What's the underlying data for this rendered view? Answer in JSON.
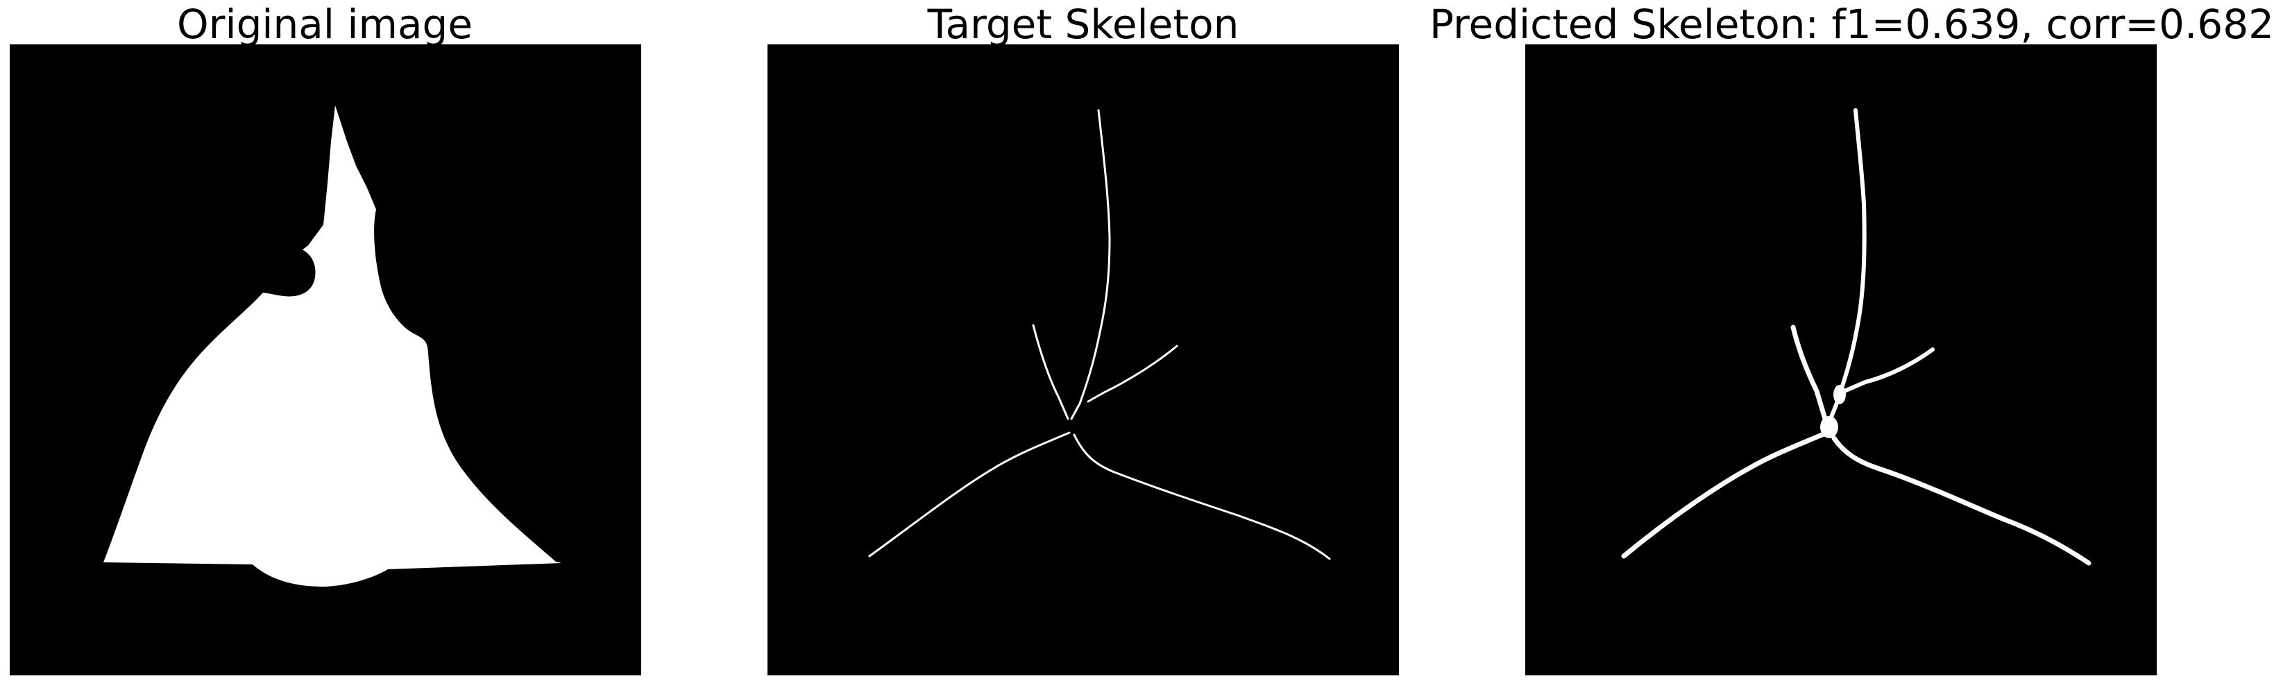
{
  "panels": [
    {
      "title": "Original image"
    },
    {
      "title": "Target Skeleton"
    },
    {
      "title": "Predicted Skeleton: f1=0.639, corr=0.682"
    }
  ],
  "colors": {
    "background": "#000000",
    "foreground": "#ffffff",
    "page": "#ffffff"
  }
}
